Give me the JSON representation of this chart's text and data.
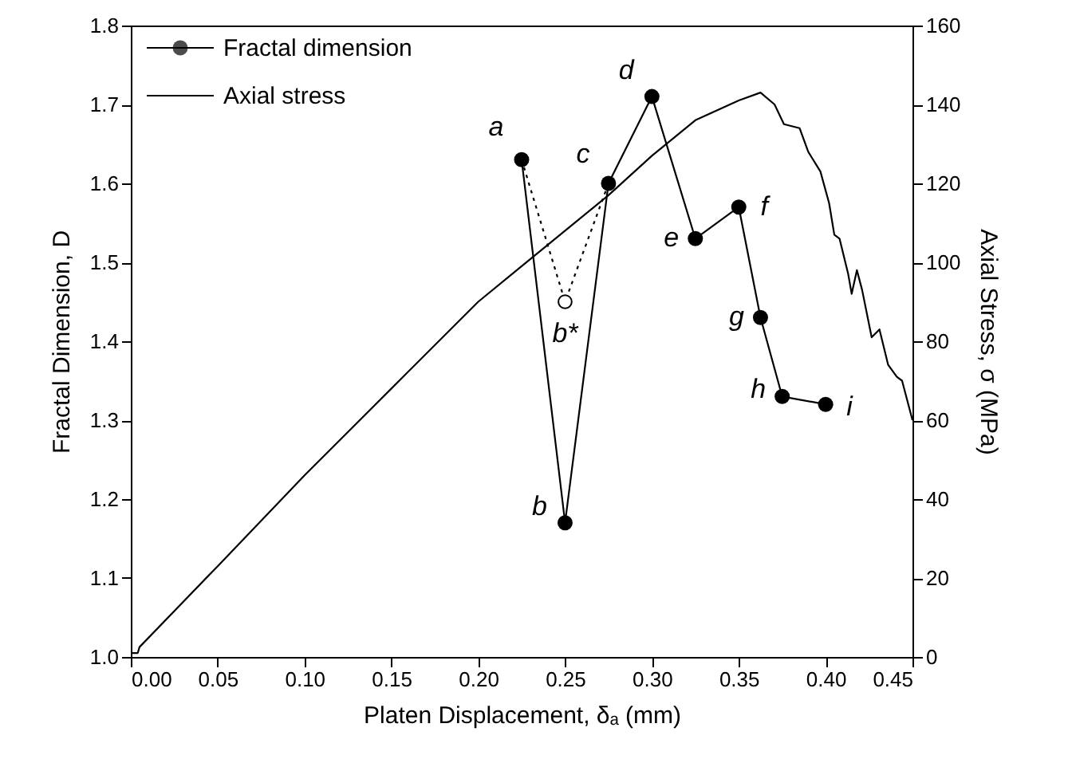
{
  "chart_data": {
    "type": "line",
    "xlabel": "Platen Displacement, δₐ (mm)",
    "ylabel": "Fractal Dimension, D",
    "y2label": "Axial Stress, σ (MPa)",
    "xlim": [
      0,
      0.45
    ],
    "xticks": [
      {
        "value": 0,
        "label": "0.00"
      },
      {
        "value": 0.05,
        "label": "0.05"
      },
      {
        "value": 0.1,
        "label": "0.10"
      },
      {
        "value": 0.15,
        "label": "0.15"
      },
      {
        "value": 0.2,
        "label": "0.20"
      },
      {
        "value": 0.25,
        "label": "0.25"
      },
      {
        "value": 0.3,
        "label": "0.30"
      },
      {
        "value": 0.35,
        "label": "0.35"
      },
      {
        "value": 0.4,
        "label": "0.40"
      },
      {
        "value": 0.45,
        "label": "0.45"
      }
    ],
    "ylim": [
      1.0,
      1.8
    ],
    "yticks": [
      {
        "value": 1,
        "label": "1.0"
      },
      {
        "value": 1.1,
        "label": "1.1"
      },
      {
        "value": 1.2,
        "label": "1.2"
      },
      {
        "value": 1.3,
        "label": "1.3"
      },
      {
        "value": 1.4,
        "label": "1.4"
      },
      {
        "value": 1.5,
        "label": "1.5"
      },
      {
        "value": 1.6,
        "label": "1.6"
      },
      {
        "value": 1.7,
        "label": "1.7"
      },
      {
        "value": 1.8,
        "label": "1.8"
      }
    ],
    "y2lim": [
      0,
      160
    ],
    "y2ticks": [
      0,
      20,
      40,
      60,
      80,
      100,
      120,
      140,
      160
    ],
    "legend": "top left",
    "grid": false,
    "series": [
      {
        "name": "Fractal dimension",
        "marker": "circle",
        "color": "#000000",
        "x": [
          0.225,
          0.25,
          0.275,
          0.3,
          0.325,
          0.35,
          0.3625,
          0.375,
          0.4
        ],
        "values": [
          1.63,
          1.17,
          1.6,
          1.71,
          1.53,
          1.57,
          1.43,
          1.33,
          1.32
        ]
      },
      {
        "line_style": "dotted",
        "color": "#000000",
        "x": [
          0.225,
          0.25,
          0.275
        ],
        "values": [
          1.63,
          1.45,
          1.6
        ]
      },
      {
        "type": "scatter",
        "marker": "circle",
        "color": "#000000",
        "x": [
          0.25
        ],
        "values": [
          1.45
        ]
      },
      {
        "name": "Axial stress",
        "axis": "y2",
        "color": "#000000",
        "x": [
          0,
          0.004,
          0.005,
          0.05,
          0.1,
          0.15,
          0.2,
          0.225,
          0.25,
          0.275,
          0.3,
          0.325,
          0.35,
          0.3625,
          0.3706,
          0.376,
          0.385,
          0.39,
          0.397,
          0.402,
          0.405,
          0.408,
          0.413,
          0.415,
          0.418,
          0.421,
          0.4265,
          0.431,
          0.436,
          0.441,
          0.444,
          0.45
        ],
        "values": [
          1,
          1,
          2.5,
          23,
          46,
          68,
          90,
          99,
          108,
          117,
          127,
          136,
          141,
          143,
          140,
          135,
          134,
          128,
          123,
          115,
          107,
          106,
          97,
          92,
          98,
          93,
          81,
          83,
          74,
          71,
          70,
          60
        ]
      }
    ],
    "annotations": [
      {
        "text": "a",
        "x": 0.225,
        "y": 1.63
      },
      {
        "text": "b",
        "x": 0.25,
        "y": 1.17
      },
      {
        "text": "c",
        "x": 0.275,
        "y": 1.6
      },
      {
        "text": "d",
        "x": 0.3,
        "y": 1.71
      },
      {
        "text": "e",
        "x": 0.325,
        "y": 1.53
      },
      {
        "text": "f",
        "x": 0.35,
        "y": 1.57
      },
      {
        "text": "g",
        "x": 0.3625,
        "y": 1.43
      },
      {
        "text": "h",
        "x": 0.375,
        "y": 1.33
      },
      {
        "text": "i",
        "x": 0.4,
        "y": 1.32
      },
      {
        "text": "b*",
        "x": 0.25,
        "y": 1.45
      }
    ]
  }
}
